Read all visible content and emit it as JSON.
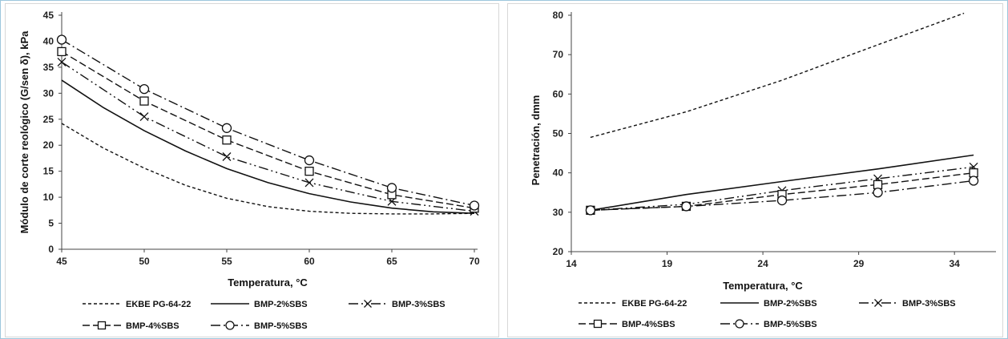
{
  "chart_data": [
    {
      "type": "line",
      "xlabel": "Temperatura, °C",
      "ylabel": "Módulo de corte reológico (G/sen δ), kPa",
      "xlim": [
        45,
        70
      ],
      "ylim": [
        0,
        45
      ],
      "xticks": [
        45,
        50,
        55,
        60,
        65,
        70
      ],
      "yticks": [
        0,
        5,
        10,
        15,
        20,
        25,
        30,
        35,
        40,
        45
      ],
      "grid": false,
      "legend": "bottom",
      "series": [
        {
          "name": "EKBE PG-64-22",
          "style": "dotted",
          "marker": "none",
          "x": [
            45,
            47.5,
            50,
            52.5,
            55,
            57.5,
            60,
            62.5,
            65,
            67.5,
            70
          ],
          "y": [
            24.2,
            19.5,
            15.6,
            12.3,
            9.8,
            8.2,
            7.3,
            6.9,
            6.8,
            6.8,
            6.9
          ]
        },
        {
          "name": "BMP-2%SBS",
          "style": "solid",
          "marker": "none",
          "x": [
            45,
            47.5,
            50,
            52.5,
            55,
            57.5,
            60,
            62.5,
            65,
            67.5,
            70
          ],
          "y": [
            32.5,
            27.3,
            22.8,
            18.9,
            15.5,
            12.8,
            10.7,
            9.1,
            7.9,
            7.2,
            6.9
          ]
        },
        {
          "name": "BMP-3%SBS",
          "style": "dashdotdot",
          "marker": "x",
          "x": [
            45,
            50,
            55,
            60,
            65,
            70
          ],
          "y": [
            36.0,
            25.5,
            17.8,
            12.8,
            9.2,
            7.3
          ],
          "marker_x": [
            45,
            50,
            55,
            60,
            65,
            70
          ]
        },
        {
          "name": "BMP-4%SBS",
          "style": "dashed",
          "marker": "square",
          "x": [
            45,
            50,
            55,
            60,
            65,
            70
          ],
          "y": [
            38.0,
            28.5,
            21.0,
            15.0,
            10.5,
            7.9
          ],
          "marker_x": [
            45,
            50,
            55,
            60,
            65,
            70
          ]
        },
        {
          "name": "BMP-5%SBS",
          "style": "dashdot",
          "marker": "circle",
          "x": [
            45,
            50,
            55,
            60,
            65,
            70
          ],
          "y": [
            40.3,
            30.8,
            23.3,
            17.1,
            11.8,
            8.4
          ],
          "marker_x": [
            45,
            50,
            55,
            60,
            65,
            70
          ]
        }
      ]
    },
    {
      "type": "line",
      "xlabel": "Temperatura, °C",
      "ylabel": "Penetración, dmm",
      "xlim": [
        14,
        36
      ],
      "ylim": [
        20,
        80
      ],
      "xticks": [
        14,
        19,
        24,
        29,
        34
      ],
      "yticks": [
        20,
        30,
        40,
        50,
        60,
        70,
        80
      ],
      "grid": false,
      "legend": "bottom",
      "series": [
        {
          "name": "EKBE PG-64-22",
          "style": "dotted",
          "marker": "none",
          "x": [
            15,
            20,
            25,
            30,
            34.5
          ],
          "y": [
            49.0,
            55.5,
            63.5,
            72.5,
            80.5
          ]
        },
        {
          "name": "BMP-2%SBS",
          "style": "solid",
          "marker": "none",
          "x": [
            15,
            20,
            25,
            30,
            35
          ],
          "y": [
            30.5,
            34.5,
            37.8,
            41.0,
            44.5
          ]
        },
        {
          "name": "BMP-3%SBS",
          "style": "dashdotdot",
          "marker": "x",
          "x": [
            15,
            20,
            25,
            30,
            35
          ],
          "y": [
            30.5,
            32.0,
            35.5,
            38.5,
            41.5
          ],
          "marker_x": [
            15,
            25,
            30,
            35
          ]
        },
        {
          "name": "BMP-4%SBS",
          "style": "dashed",
          "marker": "square",
          "x": [
            15,
            20,
            25,
            30,
            35
          ],
          "y": [
            30.5,
            31.5,
            34.5,
            37.0,
            40.0
          ],
          "marker_x": [
            15,
            20,
            25,
            30,
            35
          ]
        },
        {
          "name": "BMP-5%SBS",
          "style": "dashdot",
          "marker": "circle",
          "x": [
            15,
            20,
            25,
            30,
            35
          ],
          "y": [
            30.5,
            31.5,
            33.0,
            35.0,
            38.0
          ],
          "marker_x": [
            15,
            20,
            25,
            30,
            35
          ]
        }
      ]
    }
  ]
}
